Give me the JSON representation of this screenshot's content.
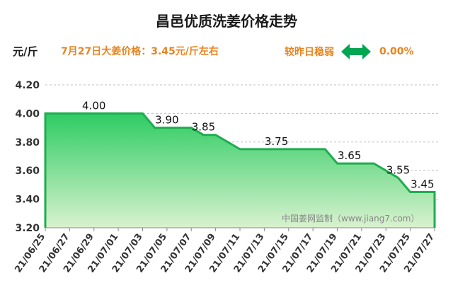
{
  "header": {
    "title": "昌邑优质洗姜价格走势",
    "unit": "元/斤",
    "price_text": "7月27日大姜价格：3.45元/斤左右",
    "change_label": "较昨日稳弱",
    "change_value": "0.00%",
    "change_icon": "double-arrow-icon",
    "change_color": "#00a651"
  },
  "chart_data": {
    "type": "area",
    "watermark": "中国姜网监制（www.jiang7.com）",
    "ylim": [
      3.2,
      4.2
    ],
    "yticks": [
      "4.20",
      "4.00",
      "3.80",
      "3.60",
      "3.40",
      "3.20"
    ],
    "xlim": [
      "2021-06-25",
      "2021-07-27"
    ],
    "xticks": [
      "21/06/25",
      "21/06/27",
      "21/06/29",
      "21/07/01",
      "21/07/03",
      "21/07/05",
      "21/07/07",
      "21/07/09",
      "21/07/11",
      "21/07/13",
      "21/07/15",
      "21/07/17",
      "21/07/19",
      "21/07/21",
      "21/07/23",
      "21/07/25",
      "21/07/27"
    ],
    "line_color": "#1fad4f",
    "fill_color_top": "#2ecc63",
    "fill_color_bottom": "#d9f2cf",
    "series": [
      {
        "points": [
          {
            "date": "2021-06-25",
            "value": 4.0
          },
          {
            "date": "2021-07-03",
            "value": 4.0
          },
          {
            "date": "2021-07-04",
            "value": 3.9
          },
          {
            "date": "2021-07-07",
            "value": 3.9
          },
          {
            "date": "2021-07-08",
            "value": 3.85
          },
          {
            "date": "2021-07-09",
            "value": 3.85
          },
          {
            "date": "2021-07-11",
            "value": 3.75
          },
          {
            "date": "2021-07-18",
            "value": 3.75
          },
          {
            "date": "2021-07-19",
            "value": 3.65
          },
          {
            "date": "2021-07-22",
            "value": 3.65
          },
          {
            "date": "2021-07-24",
            "value": 3.55
          },
          {
            "date": "2021-07-25",
            "value": 3.45
          },
          {
            "date": "2021-07-27",
            "value": 3.45
          }
        ]
      }
    ],
    "data_labels": [
      {
        "date": "2021-06-29",
        "value": 4.0,
        "text": "4.00"
      },
      {
        "date": "2021-07-05",
        "value": 3.9,
        "text": "3.90"
      },
      {
        "date": "2021-07-08",
        "value": 3.85,
        "text": "3.85"
      },
      {
        "date": "2021-07-14",
        "value": 3.75,
        "text": "3.75"
      },
      {
        "date": "2021-07-20",
        "value": 3.65,
        "text": "3.65"
      },
      {
        "date": "2021-07-24",
        "value": 3.55,
        "text": "3.55"
      },
      {
        "date": "2021-07-26",
        "value": 3.45,
        "text": "3.45"
      }
    ]
  }
}
